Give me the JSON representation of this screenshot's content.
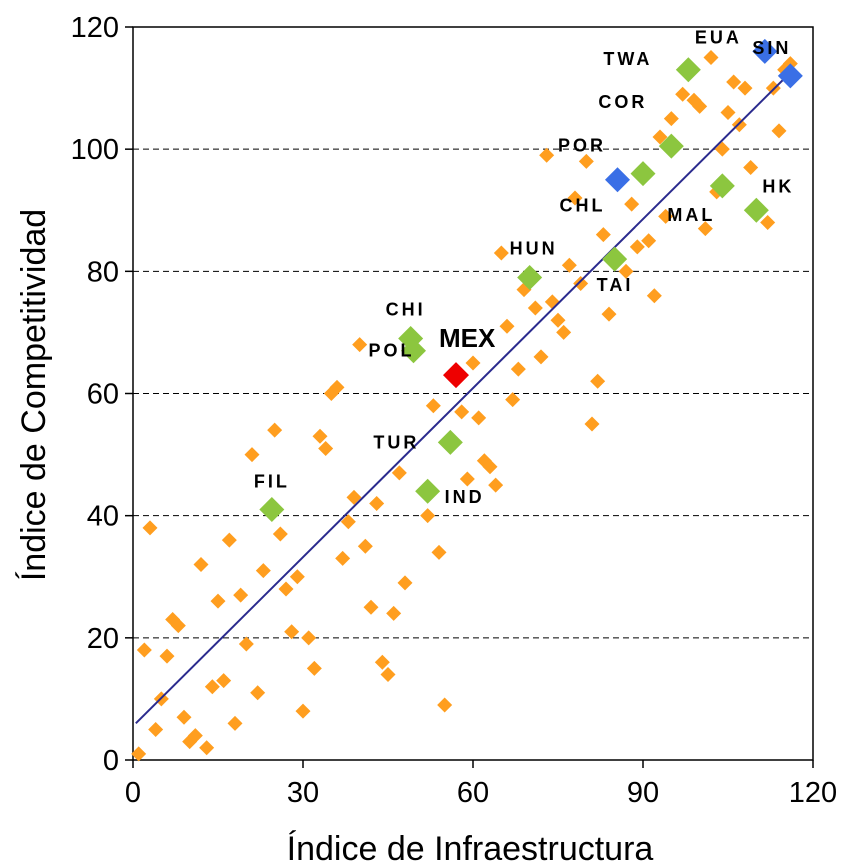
{
  "chart_data": {
    "type": "scatter",
    "xlabel": "Índice de Infraestructura",
    "ylabel": "Índice de Competitividad",
    "xlim": [
      0,
      120
    ],
    "ylim": [
      0,
      120
    ],
    "x_ticks": [
      "0",
      "30",
      "60",
      "90",
      "120"
    ],
    "y_ticks": [
      "0",
      "20",
      "40",
      "60",
      "80",
      "100",
      "120"
    ],
    "grid": "horizontal dashed",
    "colors": {
      "others": "#ff9e1f",
      "highlight_green": "#8cc63f",
      "highlight_blue": "#3a6fe6",
      "mexico": "#ee0000",
      "trendline": "#2b2b8e"
    },
    "trendline": {
      "x": [
        0.5,
        116.5
      ],
      "y": [
        6,
        113
      ]
    },
    "highlighted": [
      {
        "label": "EUA",
        "x": 111.5,
        "y": 116,
        "group": "blue"
      },
      {
        "label": "SIN",
        "x": 116,
        "y": 112,
        "group": "blue"
      },
      {
        "label": "CHL",
        "x": 85.5,
        "y": 95,
        "group": "blue"
      },
      {
        "label": "TWA",
        "x": 98,
        "y": 113,
        "group": "green"
      },
      {
        "label": "COR",
        "x": 95,
        "y": 100.5,
        "group": "green"
      },
      {
        "label": "POR",
        "x": 90,
        "y": 96,
        "group": "green"
      },
      {
        "label": "MAL",
        "x": 104,
        "y": 94,
        "group": "green"
      },
      {
        "label": "HK",
        "x": 110,
        "y": 90,
        "group": "green"
      },
      {
        "label": "HUN",
        "x": 70,
        "y": 79,
        "group": "green"
      },
      {
        "label": "TAI",
        "x": 85,
        "y": 82,
        "group": "green"
      },
      {
        "label": "CHI",
        "x": 49,
        "y": 69,
        "group": "green"
      },
      {
        "label": "POL",
        "x": 49.5,
        "y": 67,
        "group": "green"
      },
      {
        "label": "MEX",
        "x": 57,
        "y": 63,
        "group": "red"
      },
      {
        "label": "TUR",
        "x": 56,
        "y": 52,
        "group": "green"
      },
      {
        "label": "IND",
        "x": 52,
        "y": 44,
        "group": "green"
      },
      {
        "label": "FIL",
        "x": 24.5,
        "y": 41,
        "group": "green"
      }
    ],
    "others": [
      [
        1,
        1
      ],
      [
        2,
        18
      ],
      [
        3,
        38
      ],
      [
        4,
        5
      ],
      [
        5,
        10
      ],
      [
        6,
        17
      ],
      [
        7,
        23
      ],
      [
        8,
        22
      ],
      [
        9,
        7
      ],
      [
        10,
        3
      ],
      [
        11,
        4
      ],
      [
        12,
        32
      ],
      [
        13,
        2
      ],
      [
        14,
        12
      ],
      [
        15,
        26
      ],
      [
        16,
        13
      ],
      [
        17,
        36
      ],
      [
        18,
        6
      ],
      [
        19,
        27
      ],
      [
        20,
        19
      ],
      [
        21,
        50
      ],
      [
        22,
        11
      ],
      [
        23,
        31
      ],
      [
        25,
        54
      ],
      [
        26,
        37
      ],
      [
        27,
        28
      ],
      [
        28,
        21
      ],
      [
        29,
        30
      ],
      [
        30,
        8
      ],
      [
        31,
        20
      ],
      [
        32,
        15
      ],
      [
        33,
        53
      ],
      [
        34,
        51
      ],
      [
        35,
        60
      ],
      [
        36,
        61
      ],
      [
        37,
        33
      ],
      [
        38,
        39
      ],
      [
        39,
        43
      ],
      [
        40,
        68
      ],
      [
        41,
        35
      ],
      [
        42,
        25
      ],
      [
        43,
        42
      ],
      [
        44,
        16
      ],
      [
        45,
        14
      ],
      [
        46,
        24
      ],
      [
        47,
        47
      ],
      [
        48,
        29
      ],
      [
        52,
        40
      ],
      [
        53,
        58
      ],
      [
        54,
        34
      ],
      [
        55,
        9
      ],
      [
        58,
        57
      ],
      [
        59,
        46
      ],
      [
        60,
        65
      ],
      [
        61,
        56
      ],
      [
        62,
        49
      ],
      [
        63,
        48
      ],
      [
        64,
        45
      ],
      [
        65,
        83
      ],
      [
        66,
        71
      ],
      [
        67,
        59
      ],
      [
        68,
        64
      ],
      [
        69,
        77
      ],
      [
        71,
        74
      ],
      [
        72,
        66
      ],
      [
        73,
        99
      ],
      [
        74,
        75
      ],
      [
        75,
        72
      ],
      [
        76,
        70
      ],
      [
        77,
        81
      ],
      [
        78,
        92
      ],
      [
        79,
        78
      ],
      [
        80,
        98
      ],
      [
        81,
        55
      ],
      [
        82,
        62
      ],
      [
        83,
        86
      ],
      [
        84,
        73
      ],
      [
        87,
        80
      ],
      [
        88,
        91
      ],
      [
        89,
        84
      ],
      [
        91,
        85
      ],
      [
        92,
        76
      ],
      [
        93,
        102
      ],
      [
        94,
        89
      ],
      [
        95,
        105
      ],
      [
        97,
        109
      ],
      [
        99,
        108
      ],
      [
        100,
        107
      ],
      [
        101,
        87
      ],
      [
        102,
        115
      ],
      [
        103,
        93
      ],
      [
        104,
        100
      ],
      [
        105,
        106
      ],
      [
        106,
        111
      ],
      [
        107,
        104
      ],
      [
        108,
        110
      ],
      [
        109,
        97
      ],
      [
        112,
        88
      ],
      [
        113,
        110
      ],
      [
        114,
        103
      ],
      [
        115,
        113
      ],
      [
        116,
        114
      ]
    ]
  }
}
